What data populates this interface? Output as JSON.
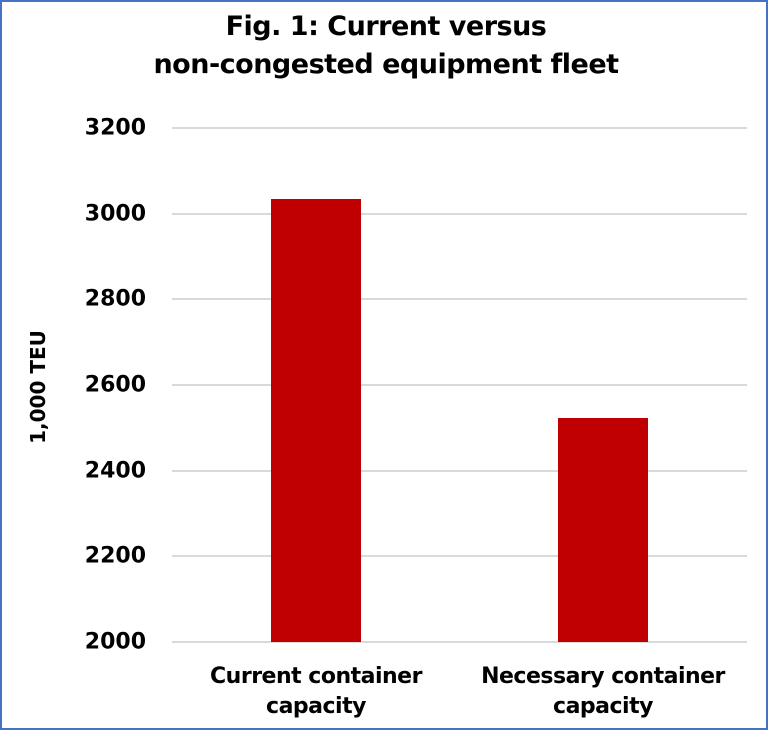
{
  "chart_data": {
    "type": "bar",
    "title": "Fig. 1: Current versus non-congested equipment fleet",
    "title_lines": [
      "Fig. 1: Current versus",
      "non-congested equipment fleet"
    ],
    "xlabel": "",
    "ylabel": "1,000 TEU",
    "categories": [
      "Current container capacity",
      "Necessary container capacity"
    ],
    "category_lines": [
      [
        "Current container",
        "capacity"
      ],
      [
        "Necessary container",
        "capacity"
      ]
    ],
    "values": [
      3035,
      2522
    ],
    "ylim": [
      2000,
      3200
    ],
    "yticks": [
      "3200",
      "3000",
      "2800",
      "2600",
      "2400",
      "2200",
      "2000"
    ],
    "grid": true,
    "legend": null,
    "bar_color": "#C00000",
    "border_color": "#4472C4"
  }
}
